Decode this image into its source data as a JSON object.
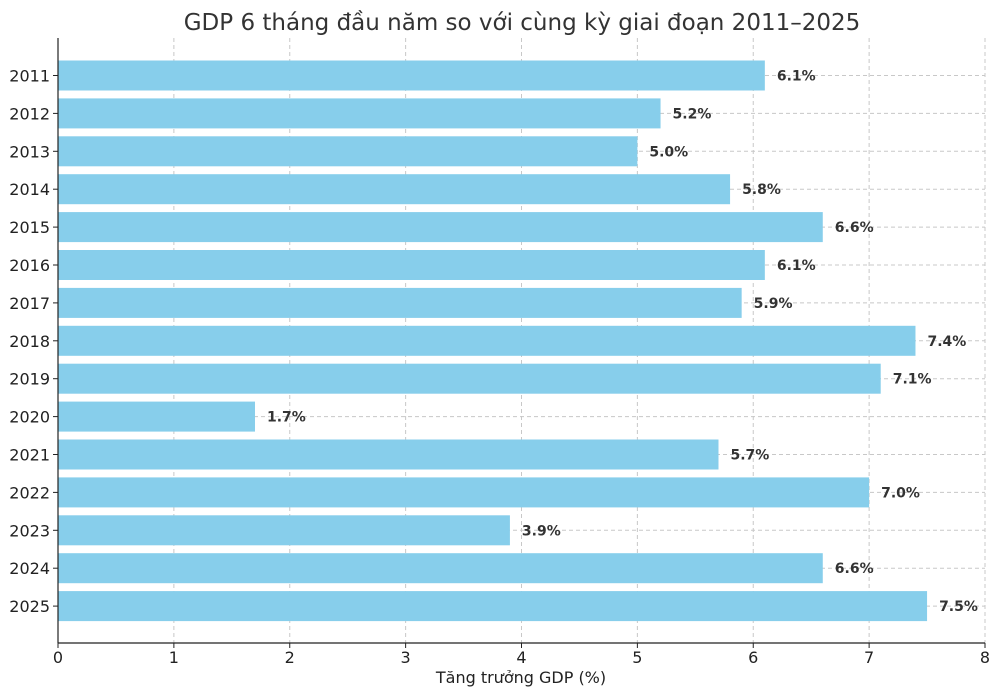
{
  "chart_data": {
    "type": "bar",
    "orientation": "horizontal",
    "title": "GDP 6 tháng đầu năm so với cùng kỳ giai đoạn 2011–2025",
    "xlabel": "Tăng trưởng GDP (%)",
    "ylabel": "",
    "categories": [
      "2011",
      "2012",
      "2013",
      "2014",
      "2015",
      "2016",
      "2017",
      "2018",
      "2019",
      "2020",
      "2021",
      "2022",
      "2023",
      "2024",
      "2025"
    ],
    "values": [
      6.1,
      5.2,
      5.0,
      5.8,
      6.6,
      6.1,
      5.9,
      7.4,
      7.1,
      1.7,
      5.7,
      7.0,
      3.9,
      6.6,
      7.5
    ],
    "value_labels": [
      "6.1%",
      "5.2%",
      "5.0%",
      "5.8%",
      "6.6%",
      "6.1%",
      "5.9%",
      "7.4%",
      "7.1%",
      "1.7%",
      "5.7%",
      "7.0%",
      "3.9%",
      "6.6%",
      "7.5%"
    ],
    "xlim": [
      0,
      8
    ],
    "x_ticks": [
      "0",
      "1",
      "2",
      "3",
      "4",
      "5",
      "6",
      "7",
      "8"
    ],
    "grid": true,
    "legend": "none",
    "colors": {
      "bar": "#87ceeb",
      "text": "#333333",
      "grid": "#c8c8c8",
      "axis": "#222222"
    }
  }
}
